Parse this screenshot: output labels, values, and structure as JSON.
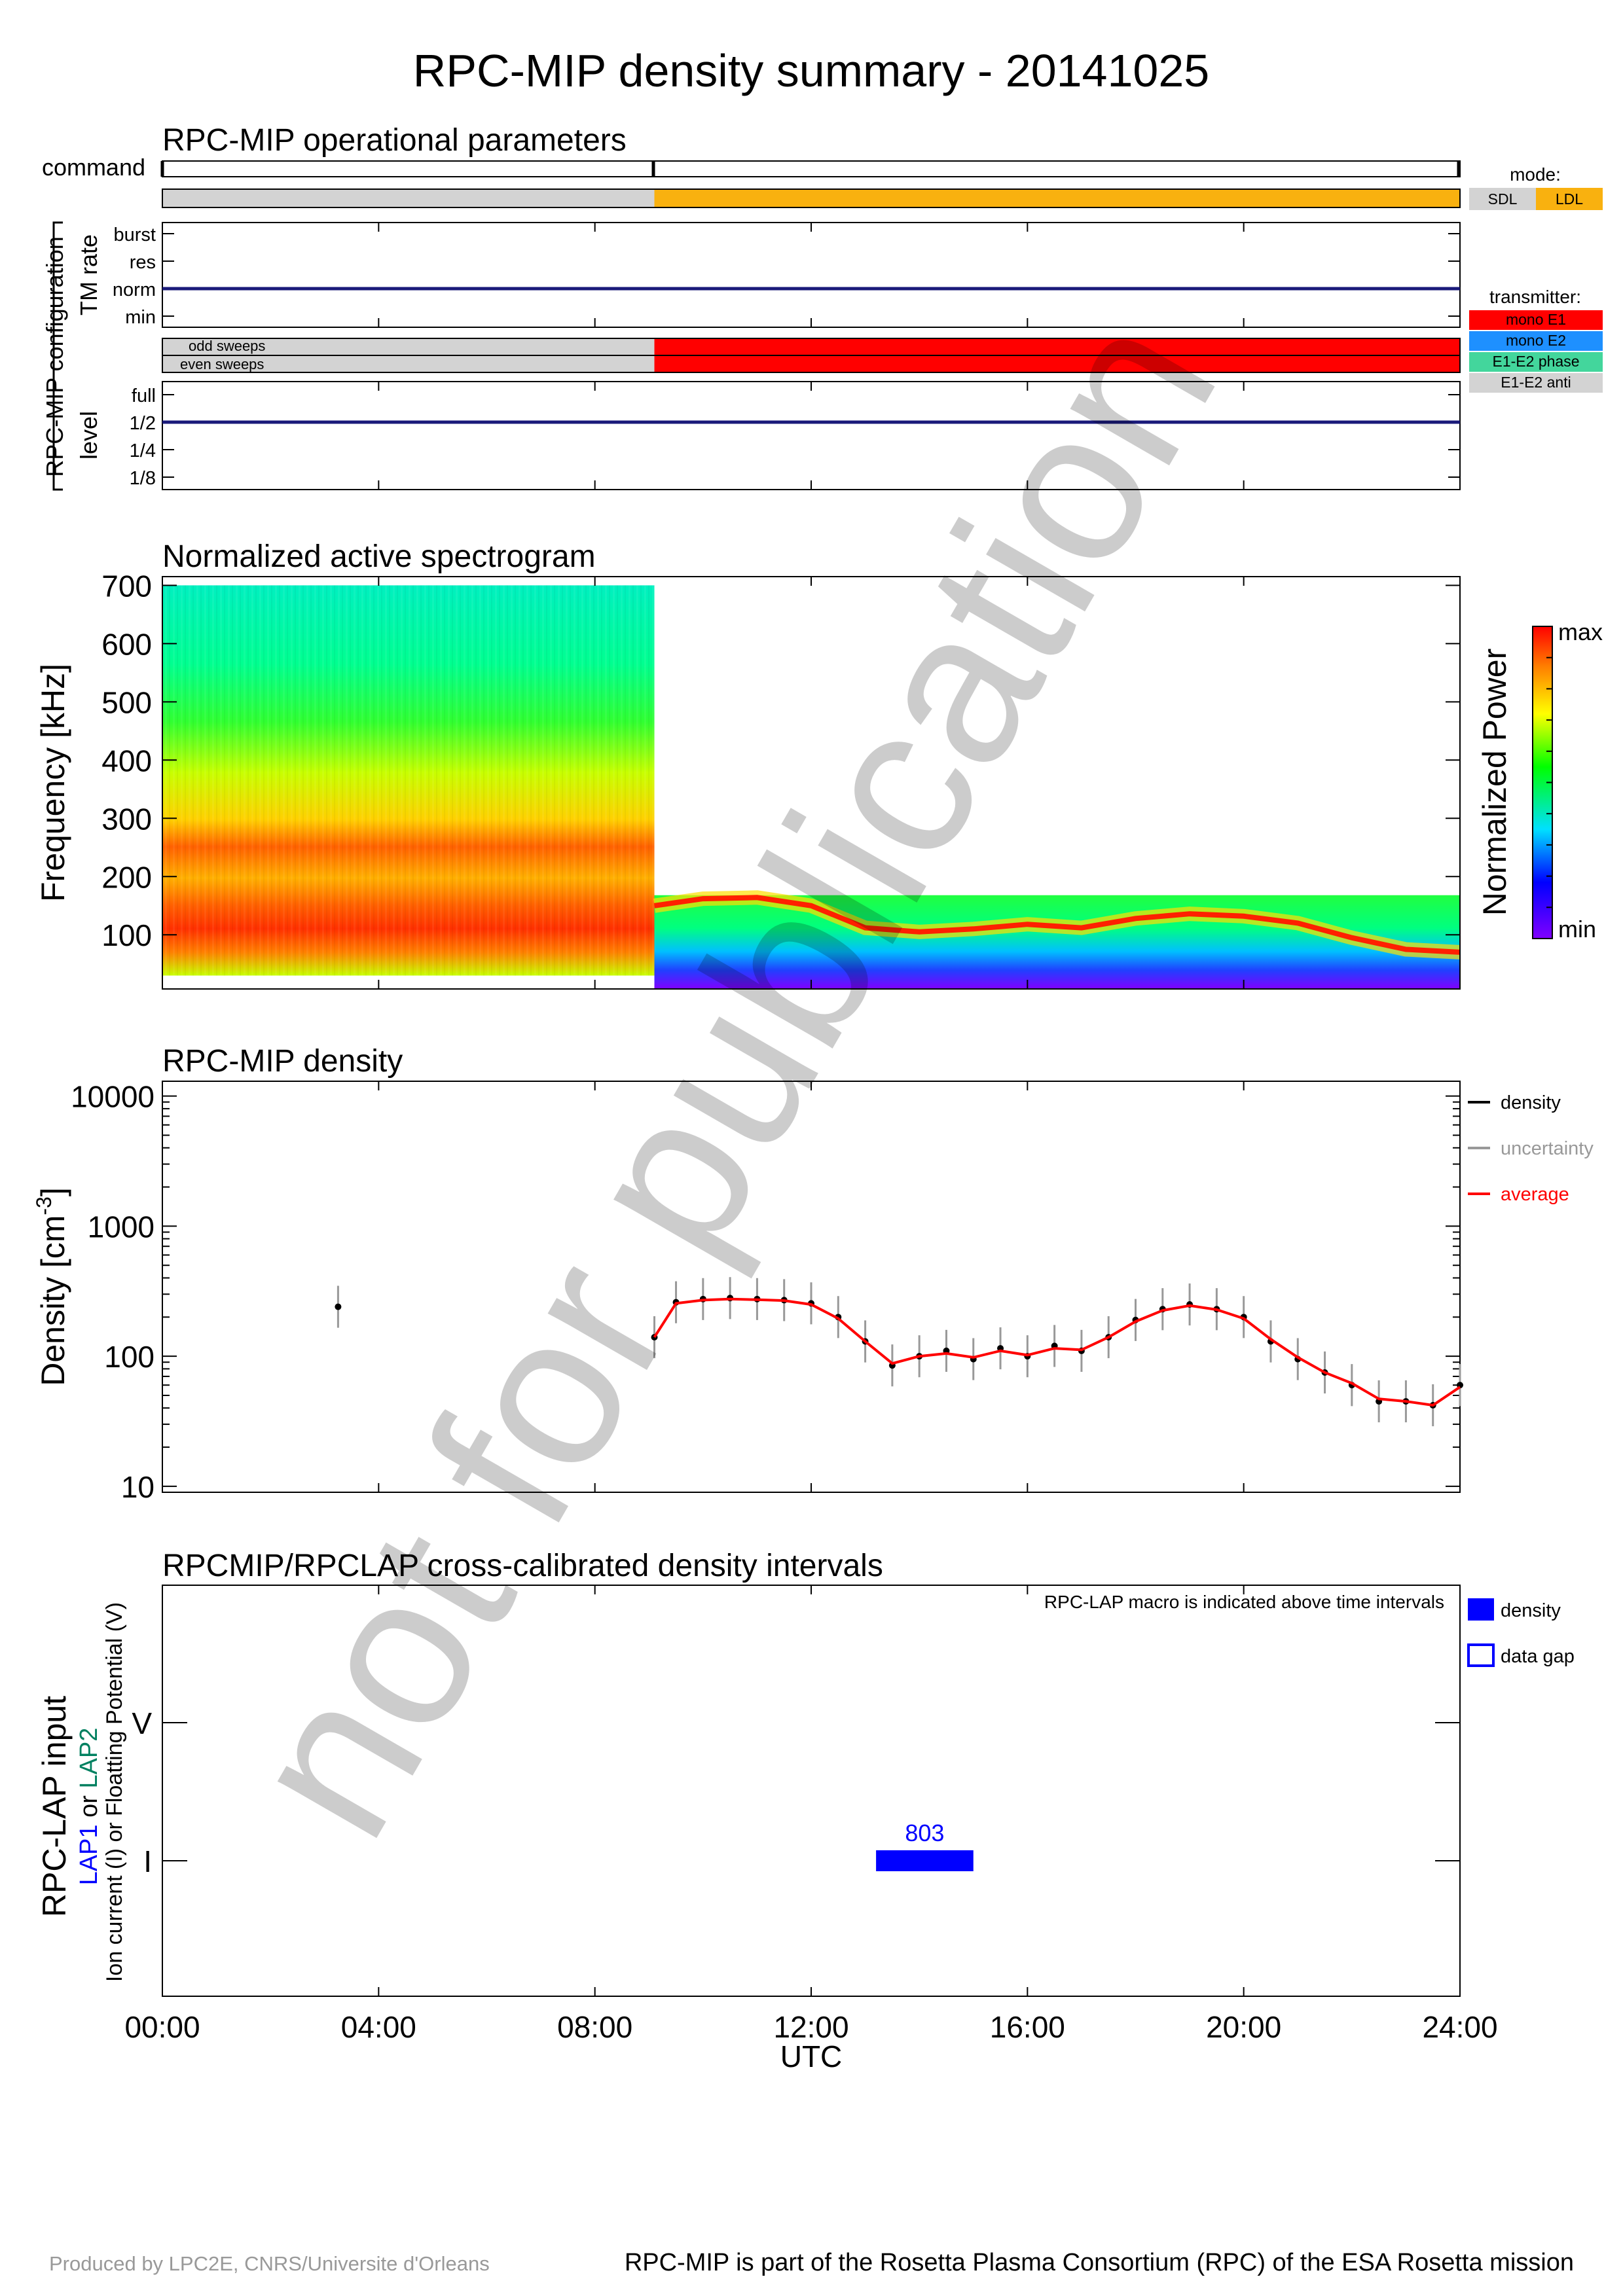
{
  "title": "RPC-MIP density summary - 20141025",
  "footer": {
    "left": "Produced by LPC2E, CNRS/Universite d'Orleans",
    "right": "RPC-MIP is part of the Rosetta Plasma Consortium (RPC) of the ESA Rosetta mission"
  },
  "watermark": "not for publication",
  "ops": {
    "title": "RPC-MIP operational parameters",
    "command_label": "command",
    "config_label": "RPC-MIP configuration",
    "tm_label": "TM rate",
    "tm_ticks": [
      "burst",
      "res",
      "norm",
      "min"
    ],
    "level_label": "level",
    "level_ticks": [
      "full",
      "1/2",
      "1/4",
      "1/8"
    ],
    "odd_label": "odd sweeps",
    "even_label": "even sweeps",
    "mode_legend_title": "mode:",
    "mode_sdl": "SDL",
    "mode_ldl": "LDL",
    "tx_legend_title": "transmitter:",
    "tx_items": [
      "mono E1",
      "mono E2",
      "E1-E2 phase",
      "E1-E2 anti"
    ],
    "colors": {
      "sdl": "#d3d3d3",
      "ldl": "#f9b10f",
      "mono_e1": "#ff0000",
      "mono_e2": "#1e90ff",
      "phase": "#43d69c",
      "anti": "#d3d3d3",
      "line": "#1a1a7a"
    },
    "mode_segments": [
      {
        "start": 0,
        "end": 9.1,
        "mode": "SDL"
      },
      {
        "start": 9.1,
        "end": 24,
        "mode": "LDL"
      }
    ],
    "tx_segments": [
      {
        "start": 0,
        "end": 9.1,
        "tx": "none"
      },
      {
        "start": 9.1,
        "end": 24,
        "tx": "mono E1"
      }
    ],
    "tm_rate_value": "norm",
    "level_value": "1/2"
  },
  "spec": {
    "title": "Normalized active spectrogram",
    "ylabel": "Frequency [kHz]",
    "yticks": [
      "100",
      "200",
      "300",
      "400",
      "500",
      "600",
      "700"
    ],
    "cbar_label": "Normalized Power",
    "cbar_max": "max",
    "cbar_min": "min"
  },
  "density": {
    "title": "RPC-MIP density",
    "ylabel": "Density [cm",
    "ylabel_sup": "-3",
    "ylabel_end": "]",
    "yticks": [
      "10",
      "100",
      "1000",
      "10000"
    ],
    "legend": [
      "density",
      "uncertainty",
      "average"
    ],
    "colors": {
      "density": "#000000",
      "uncertainty": "#999999",
      "average": "#ff0000"
    }
  },
  "lap": {
    "title": "RPCMIP/RPCLAP cross-calibrated density intervals",
    "ylabel": "RPC-LAP input",
    "ylabel2_a": "LAP1",
    "ylabel2_b": " or ",
    "ylabel2_c": "LAP2",
    "ylabel3": "Ion current (I) or Floatting Potential (V)",
    "yticks": [
      "I",
      "V"
    ],
    "note": "RPC-LAP macro is indicated above time intervals",
    "legend": [
      "density",
      "data gap"
    ],
    "interval_macro": "803",
    "xlabel": "UTC",
    "xticks": [
      "00:00",
      "04:00",
      "08:00",
      "12:00",
      "16:00",
      "20:00",
      "24:00"
    ]
  },
  "chart_data": [
    {
      "type": "table",
      "title": "RPC-MIP operational parameters",
      "rows": [
        {
          "parameter": "mode",
          "interval": "00:00-09:06",
          "value": "SDL"
        },
        {
          "parameter": "mode",
          "interval": "09:06-24:00",
          "value": "LDL"
        },
        {
          "parameter": "transmitter (odd/even sweeps)",
          "interval": "09:06-24:00",
          "value": "mono E1"
        },
        {
          "parameter": "TM rate",
          "interval": "00:00-24:00",
          "value": "norm"
        },
        {
          "parameter": "level",
          "interval": "00:00-24:00",
          "value": "1/2"
        }
      ]
    },
    {
      "type": "heatmap",
      "title": "Normalized active spectrogram",
      "xlabel": "UTC",
      "ylabel": "Frequency [kHz]",
      "xlim": [
        0,
        24
      ],
      "ylim": [
        7,
        715
      ],
      "segments": [
        {
          "start_h": 0,
          "end_h": 9.1,
          "fmin_khz": 30,
          "fmax_khz": 700,
          "peak_band_khz": [
            90,
            170
          ]
        },
        {
          "start_h": 9.1,
          "end_h": 24,
          "fmin_khz": 7,
          "fmax_khz": 168
        }
      ],
      "ridge_line_khz": {
        "x_h": [
          9.1,
          10,
          11,
          12,
          13,
          14,
          15,
          16,
          17,
          18,
          19,
          20,
          21,
          22,
          23,
          24
        ],
        "y": [
          150,
          162,
          164,
          150,
          112,
          105,
          110,
          118,
          112,
          128,
          136,
          132,
          120,
          95,
          75,
          70
        ]
      }
    },
    {
      "type": "scatter",
      "title": "RPC-MIP density",
      "xlabel": "UTC",
      "ylabel": "Density [cm-3]",
      "yscale": "log",
      "ylim": [
        9,
        13000
      ],
      "xlim": [
        0,
        24
      ],
      "series": [
        {
          "name": "density",
          "x": [
            3.25,
            9.1,
            9.5,
            10,
            10.5,
            11,
            11.5,
            12,
            12.5,
            13,
            13.5,
            14,
            14.5,
            15,
            15.5,
            16,
            16.5,
            17,
            17.5,
            18,
            18.5,
            19,
            19.5,
            20,
            20.5,
            21,
            21.5,
            22,
            22.5,
            23,
            23.5,
            24
          ],
          "y": [
            240,
            140,
            260,
            275,
            280,
            275,
            270,
            255,
            200,
            130,
            85,
            100,
            110,
            95,
            115,
            100,
            120,
            110,
            140,
            190,
            230,
            250,
            230,
            200,
            130,
            95,
            75,
            60,
            45,
            45,
            42,
            60
          ]
        },
        {
          "name": "average",
          "x": [
            9.1,
            9.5,
            10,
            10.5,
            11,
            11.5,
            12,
            12.5,
            13,
            13.5,
            14,
            14.5,
            15,
            15.5,
            16,
            16.5,
            17,
            17.5,
            18,
            18.5,
            19,
            19.5,
            20,
            20.5,
            21,
            21.5,
            22,
            22.5,
            23,
            23.5,
            24
          ],
          "y": [
            140,
            255,
            270,
            275,
            272,
            268,
            250,
            195,
            130,
            88,
            100,
            105,
            98,
            110,
            102,
            115,
            112,
            140,
            185,
            225,
            245,
            228,
            195,
            135,
            98,
            75,
            62,
            47,
            45,
            42,
            58
          ]
        }
      ]
    },
    {
      "type": "bar",
      "title": "RPCMIP/RPCLAP cross-calibrated density intervals",
      "xlabel": "UTC",
      "ylabel": "RPC-LAP input",
      "intervals": [
        {
          "start_h": 13.2,
          "end_h": 15.0,
          "input": "I",
          "probe": "LAP1",
          "macro": "803",
          "kind": "density"
        }
      ]
    }
  ]
}
